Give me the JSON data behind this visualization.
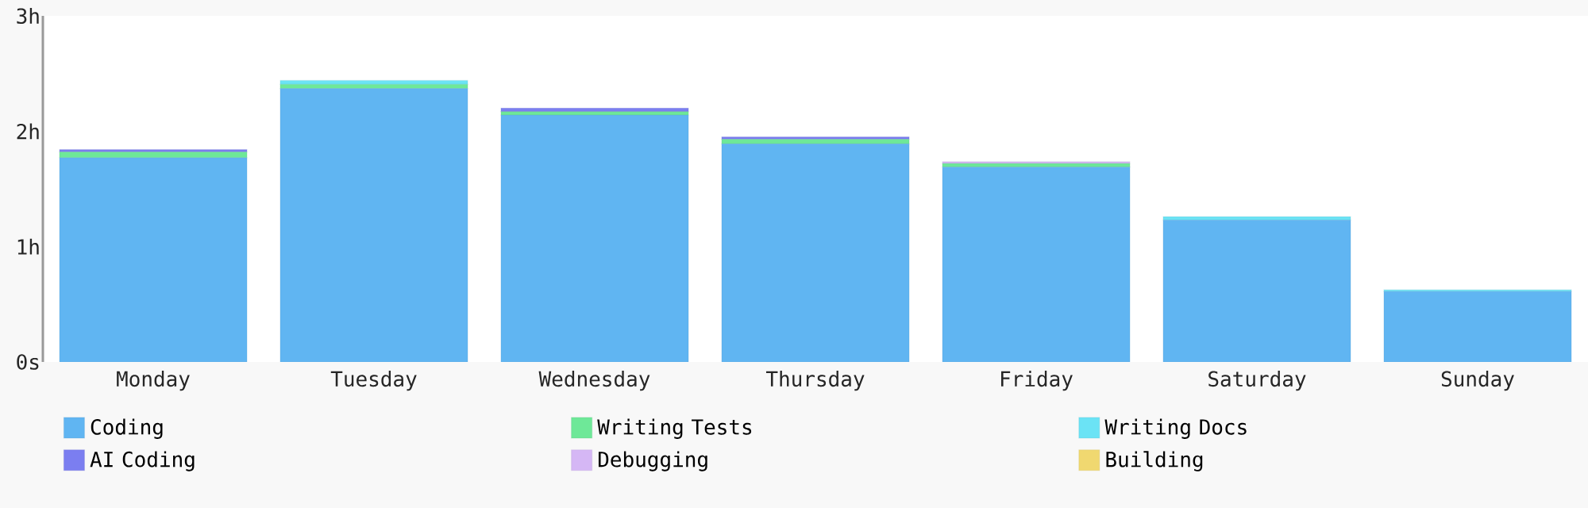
{
  "chart_data": {
    "type": "bar",
    "stacked": true,
    "categories": [
      "Monday",
      "Tuesday",
      "Wednesday",
      "Thursday",
      "Friday",
      "Saturday",
      "Sunday"
    ],
    "series": [
      {
        "name": "Coding",
        "color": "#60b5f2",
        "values": [
          1.77,
          2.37,
          2.14,
          1.89,
          1.69,
          1.23,
          0.61
        ]
      },
      {
        "name": "Writing Tests",
        "color": "#6ee898",
        "values": [
          0.05,
          0.035,
          0.03,
          0.04,
          0.03,
          0,
          0
        ]
      },
      {
        "name": "Writing Docs",
        "color": "#6be3f5",
        "values": [
          0,
          0.035,
          0,
          0,
          0,
          0.03,
          0.015
        ]
      },
      {
        "name": "AI Coding",
        "color": "#7b7ef0",
        "values": [
          0.02,
          0,
          0.03,
          0.02,
          0,
          0,
          0
        ]
      },
      {
        "name": "Debugging",
        "color": "#d5b7f5",
        "values": [
          0,
          0,
          0,
          0,
          0.015,
          0,
          0
        ]
      },
      {
        "name": "Building",
        "color": "#f0d870",
        "values": [
          0,
          0,
          0,
          0,
          0,
          0,
          0
        ]
      }
    ],
    "ylim": [
      0,
      3
    ],
    "yticks": [
      {
        "value": 0,
        "label": "0s"
      },
      {
        "value": 1,
        "label": "1h"
      },
      {
        "value": 2,
        "label": "2h"
      },
      {
        "value": 3,
        "label": "3h"
      }
    ],
    "grid": false,
    "legend": "bottom"
  }
}
